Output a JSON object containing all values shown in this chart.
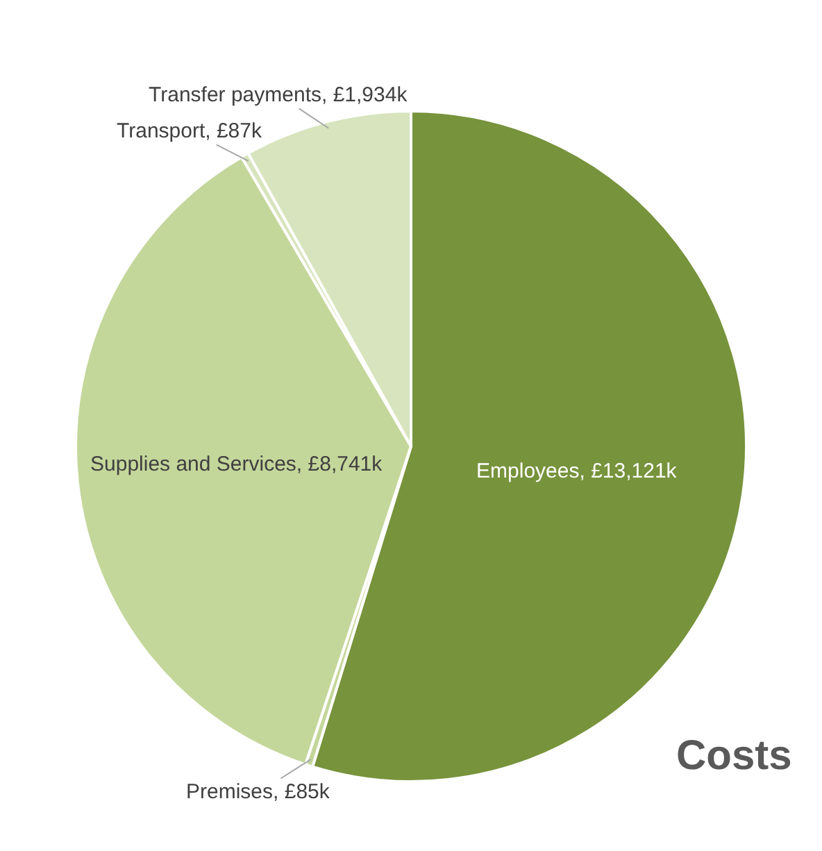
{
  "chart_data": {
    "type": "pie",
    "title": "Costs",
    "categories": [
      "Employees",
      "Premises",
      "Supplies and Services",
      "Transport",
      "Transfer payments"
    ],
    "values": [
      13121,
      85,
      8741,
      87,
      1934
    ],
    "value_labels": [
      "£13,121k",
      "£85k",
      "£8,741k",
      "£87k",
      "£1,934k"
    ],
    "colors": [
      "#77933c",
      "#c4d79b",
      "#c4d79b",
      "#d7e4bd",
      "#d7e4bd"
    ],
    "legend": false
  }
}
